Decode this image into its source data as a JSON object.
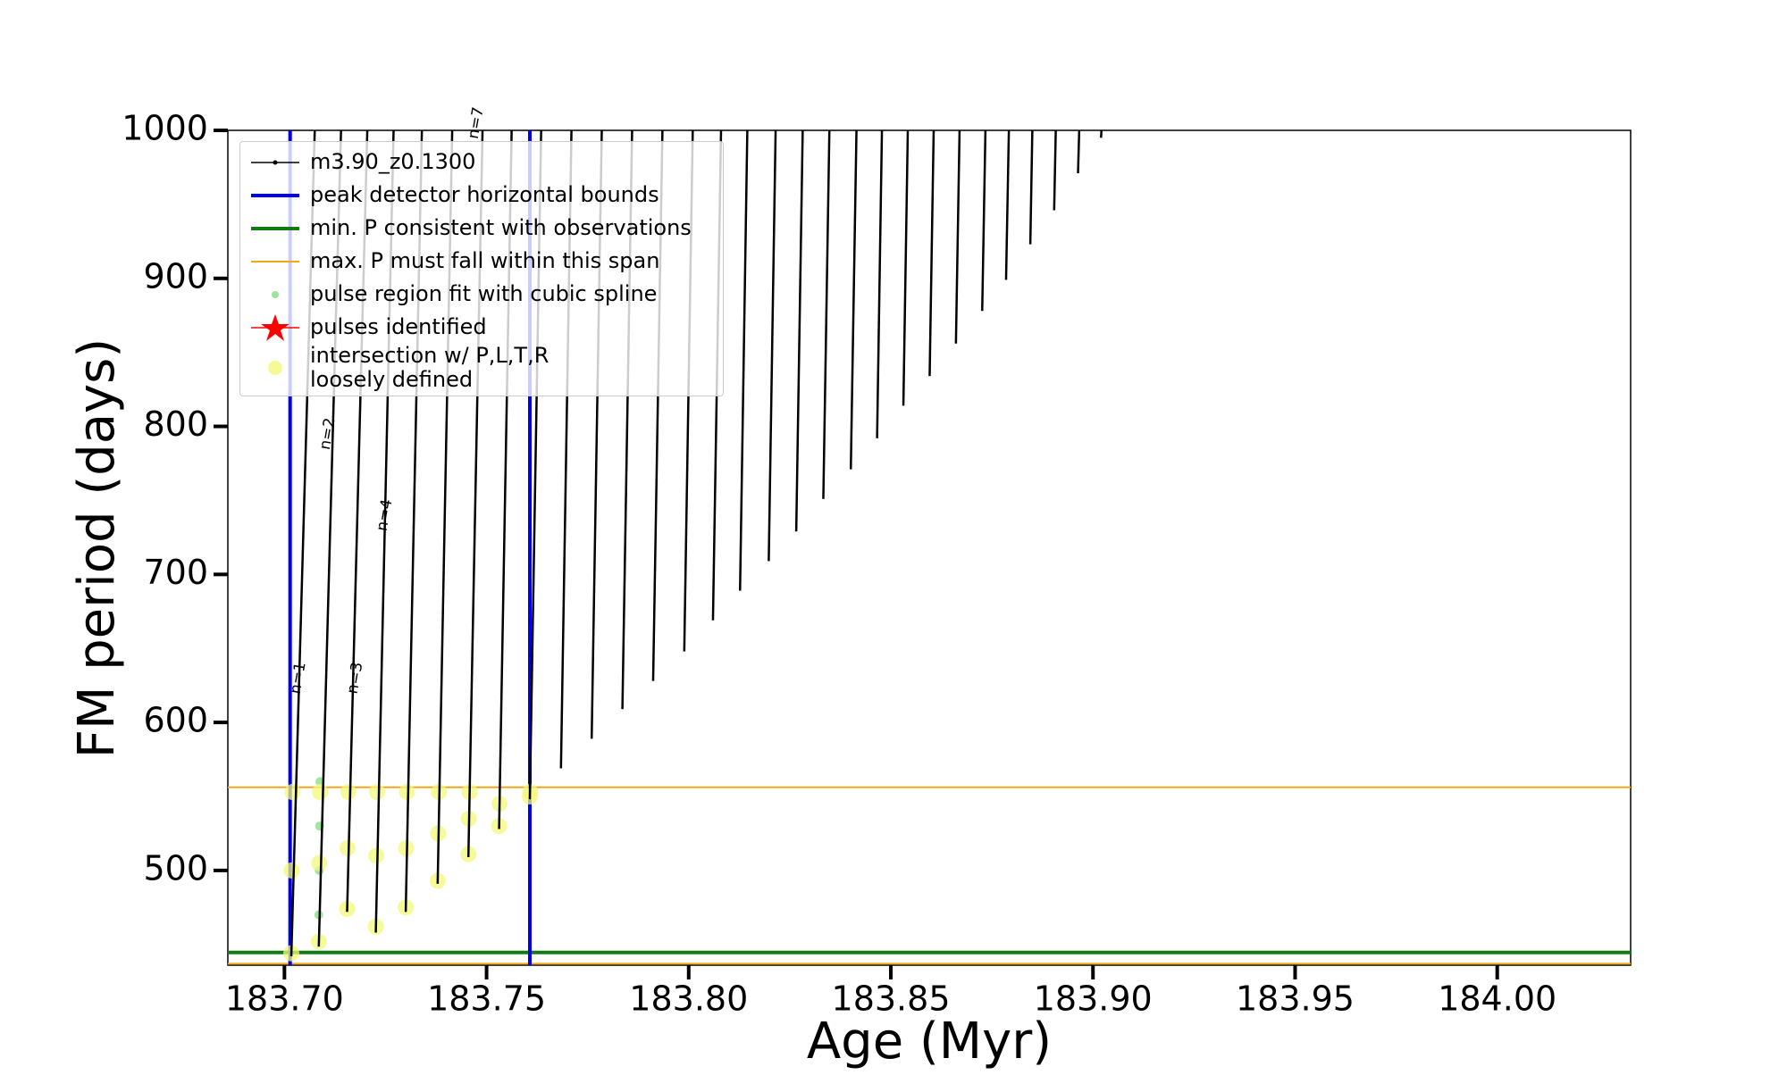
{
  "chart_data": {
    "type": "line",
    "xlabel": "Age (Myr)",
    "ylabel": "FM period (days)",
    "xlim": [
      183.686,
      184.033
    ],
    "ylim": [
      436,
      1000
    ],
    "xticks": [
      {
        "value": 183.7,
        "label": "183.70"
      },
      {
        "value": 183.75,
        "label": "183.75"
      },
      {
        "value": 183.8,
        "label": "183.80"
      },
      {
        "value": 183.85,
        "label": "183.85"
      },
      {
        "value": 183.9,
        "label": "183.90"
      },
      {
        "value": 183.95,
        "label": "183.95"
      },
      {
        "value": 184.0,
        "label": "184.00"
      }
    ],
    "yticks": [
      500,
      600,
      700,
      800,
      900,
      1000
    ],
    "legend": "upper left",
    "series": [
      {
        "name": "m3.90_z0.1300",
        "color": "#000000",
        "kind": "line",
        "x": [
          183.7017,
          183.7075,
          null,
          183.7085,
          183.714,
          null,
          183.7155,
          183.7205,
          null,
          183.7226,
          183.727,
          null,
          183.73,
          183.734,
          null,
          183.7379,
          183.7415,
          null,
          183.7455,
          183.749,
          null,
          183.7531,
          183.7562,
          null,
          183.7607,
          183.7635,
          null,
          183.7684,
          183.771,
          null,
          183.776,
          183.7785,
          null,
          183.7836,
          183.786,
          null,
          183.7912,
          183.7935,
          null,
          183.7989,
          183.801,
          null,
          183.806,
          183.808,
          null,
          183.8127,
          183.8145,
          null,
          183.8198,
          183.8215,
          null,
          183.8266,
          183.8282,
          null,
          183.8333,
          183.8348,
          null,
          183.8401,
          183.8415,
          null,
          183.8466,
          183.8478,
          null,
          183.8531,
          183.8542,
          null,
          183.8596,
          183.8606,
          null,
          183.8661,
          183.867,
          null,
          183.8726,
          183.8734,
          null,
          183.8785,
          183.8792,
          null,
          183.8845,
          183.885,
          null,
          183.8904,
          183.8908,
          null,
          183.8963,
          183.8966,
          null,
          183.902,
          183.9021
        ],
        "values": [
          442,
          1000,
          null,
          448.5,
          1000,
          null,
          472,
          1000,
          null,
          458,
          1000,
          null,
          472,
          1000,
          null,
          491,
          1000,
          null,
          509,
          1000,
          null,
          528,
          1000,
          null,
          548,
          1000,
          null,
          569,
          1000,
          null,
          589,
          1000,
          null,
          609,
          1000,
          null,
          628,
          1000,
          null,
          648,
          1000,
          null,
          669,
          1000,
          null,
          689,
          1000,
          null,
          709,
          1000,
          null,
          729,
          1000,
          null,
          751,
          1000,
          null,
          771,
          1000,
          null,
          792,
          1000,
          null,
          814,
          1000,
          null,
          834,
          1000,
          null,
          856,
          1000,
          null,
          878,
          1000,
          null,
          899,
          1000,
          null,
          923,
          1000,
          null,
          946,
          1000,
          null,
          971,
          1000,
          null,
          995,
          1000
        ]
      },
      {
        "name": "peak detector horizontal bounds",
        "color": "#0000ee",
        "kind": "vline",
        "x": [
          183.7014,
          183.7607
        ]
      },
      {
        "name": "min. P consistent with observations",
        "color": "#137a13",
        "kind": "hline",
        "values": [
          444.6
        ]
      },
      {
        "name": "max. P must fall within this span",
        "color": "#f0a818",
        "kind": "hline",
        "values": [
          556.2,
          437
        ]
      },
      {
        "name": "pulse region fit with cubic spline",
        "color": "#7ee07e",
        "kind": "scatter",
        "x": [
          183.7085,
          183.7086,
          183.7087,
          183.7088
        ],
        "values": [
          470,
          500,
          530,
          560
        ]
      },
      {
        "name": "pulses identified",
        "color": "#ff0000",
        "kind": "star",
        "x": [],
        "values": []
      },
      {
        "name": "intersection w/ P,L,T,R\nloosely defined",
        "color": "#f4f87a",
        "kind": "scatter",
        "x": [
          183.7017,
          183.7018,
          183.702,
          183.7085,
          183.7086,
          183.7088,
          183.7155,
          183.7156,
          183.7158,
          183.7226,
          183.7227,
          183.7229,
          183.73,
          183.7301,
          183.7303,
          183.7379,
          183.738,
          183.7382,
          183.7455,
          183.7456,
          183.7458,
          183.7531,
          183.7532,
          183.7607,
          183.7608
        ],
        "values": [
          444,
          500,
          553,
          452,
          505,
          553,
          474,
          515,
          553,
          462,
          510,
          553,
          475,
          515,
          553,
          493,
          525,
          553,
          511,
          535,
          553,
          530,
          545,
          550,
          553
        ]
      }
    ],
    "annotations": [
      {
        "text": "n=1",
        "x": 183.7034,
        "y": 630
      },
      {
        "text": "n=2",
        "x": 183.7107,
        "y": 795
      },
      {
        "text": "n=3",
        "x": 183.7175,
        "y": 630
      },
      {
        "text": "n=4",
        "x": 183.7248,
        "y": 740
      },
      {
        "text": "n=7",
        "x": 183.7474,
        "y": 1005
      }
    ]
  }
}
